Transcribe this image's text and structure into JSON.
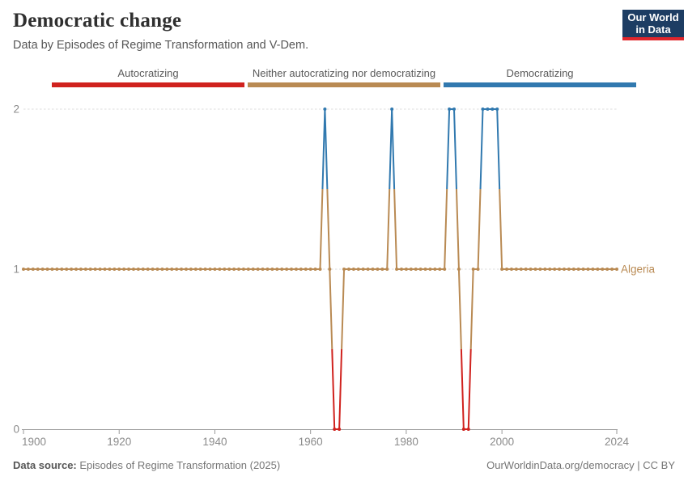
{
  "header": {
    "title": "Democratic change",
    "subtitle": "Data by Episodes of Regime Transformation and V-Dem."
  },
  "logo": {
    "line1": "Our World",
    "line2": "in Data",
    "bg_color": "#1d3d63",
    "accent_color": "#e0262c"
  },
  "legend": {
    "items": [
      {
        "label": "Autocratizing",
        "value": 0,
        "color": "#d0221e"
      },
      {
        "label": "Neither autocratizing nor democratizing",
        "value": 1,
        "color": "#b98a53"
      },
      {
        "label": "Democratizing",
        "value": 2,
        "color": "#3179af"
      }
    ]
  },
  "chart_data": {
    "type": "line",
    "title": "Democratic change",
    "entity_label": "Algeria",
    "x_range": [
      1900,
      2024
    ],
    "x_ticks": [
      1900,
      1920,
      1940,
      1960,
      1980,
      2000,
      2024
    ],
    "y_ticks": [
      0,
      1,
      2
    ],
    "ylim": [
      0,
      2
    ],
    "grid": "dashed-horizontal",
    "legend_position": "top-bar",
    "value_categories": {
      "0": "Autocratizing",
      "1": "Neither autocratizing nor democratizing",
      "2": "Democratizing"
    },
    "series": [
      {
        "name": "Algeria",
        "start_year": 1900,
        "values": [
          1,
          1,
          1,
          1,
          1,
          1,
          1,
          1,
          1,
          1,
          1,
          1,
          1,
          1,
          1,
          1,
          1,
          1,
          1,
          1,
          1,
          1,
          1,
          1,
          1,
          1,
          1,
          1,
          1,
          1,
          1,
          1,
          1,
          1,
          1,
          1,
          1,
          1,
          1,
          1,
          1,
          1,
          1,
          1,
          1,
          1,
          1,
          1,
          1,
          1,
          1,
          1,
          1,
          1,
          1,
          1,
          1,
          1,
          1,
          1,
          1,
          1,
          1,
          2,
          1,
          0,
          0,
          1,
          1,
          1,
          1,
          1,
          1,
          1,
          1,
          1,
          1,
          2,
          1,
          1,
          1,
          1,
          1,
          1,
          1,
          1,
          1,
          1,
          1,
          2,
          2,
          1,
          0,
          0,
          1,
          1,
          2,
          2,
          2,
          2,
          1,
          1,
          1,
          1,
          1,
          1,
          1,
          1,
          1,
          1,
          1,
          1,
          1,
          1,
          1,
          1,
          1,
          1,
          1,
          1,
          1,
          1,
          1,
          1,
          1
        ]
      }
    ],
    "colors": {
      "grid": "#dcdcdc",
      "axis": "#9a9a9a",
      "tick_label": "#8b8b8b"
    }
  },
  "footer": {
    "source_label": "Data source:",
    "source_text": " Episodes of Regime Transformation (2025)",
    "link_text": "OurWorldinData.org/democracy | CC BY"
  }
}
